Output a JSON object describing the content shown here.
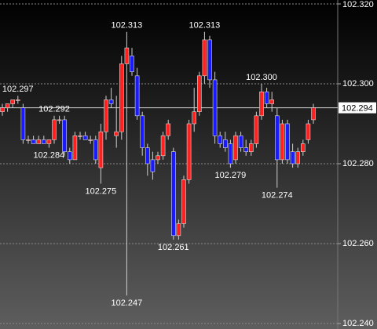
{
  "chart_data": {
    "type": "candlestick",
    "series": [
      {
        "up_color": "#ff2020",
        "down_color": "#1a1aff",
        "open": [
          102.293,
          102.294,
          102.295,
          102.296,
          102.294,
          102.286,
          102.286,
          102.285,
          102.286,
          102.285,
          102.286,
          102.291,
          102.291,
          102.283,
          102.281,
          102.287,
          102.287,
          102.286,
          102.286,
          102.279,
          102.288,
          102.296,
          102.287,
          102.288,
          102.305,
          102.307,
          102.302,
          102.292,
          102.284,
          102.281,
          102.281,
          102.282,
          102.287,
          102.283,
          102.262,
          102.265,
          102.276,
          102.29,
          102.293,
          102.302,
          102.311,
          102.301,
          102.287,
          102.286,
          102.285,
          102.281,
          102.287,
          102.284,
          102.283,
          102.285,
          102.292,
          102.298,
          102.295,
          102.292,
          102.281,
          102.29,
          102.283,
          102.28,
          102.283,
          102.286,
          102.291
        ],
        "high": [
          102.295,
          102.295,
          102.296,
          102.297,
          102.295,
          102.287,
          102.287,
          102.287,
          102.287,
          102.286,
          102.292,
          102.292,
          102.292,
          102.284,
          102.288,
          102.288,
          102.288,
          102.287,
          102.287,
          102.29,
          102.297,
          102.299,
          102.297,
          102.307,
          102.313,
          102.309,
          102.304,
          102.293,
          102.285,
          102.283,
          102.283,
          102.288,
          102.291,
          102.284,
          102.266,
          102.277,
          102.291,
          102.299,
          102.303,
          102.313,
          102.312,
          102.303,
          102.288,
          102.288,
          102.286,
          102.288,
          102.288,
          102.286,
          102.286,
          102.293,
          102.3,
          102.299,
          102.298,
          102.294,
          102.291,
          102.291,
          102.285,
          102.284,
          102.286,
          102.291,
          102.295
        ],
        "low": [
          102.292,
          102.293,
          102.294,
          102.295,
          102.285,
          102.285,
          102.285,
          102.285,
          102.285,
          102.284,
          102.285,
          102.29,
          102.282,
          102.28,
          102.281,
          102.286,
          102.286,
          102.285,
          102.28,
          102.275,
          102.286,
          102.294,
          102.284,
          102.286,
          102.247,
          102.302,
          102.291,
          102.282,
          102.277,
          102.276,
          102.28,
          102.281,
          102.286,
          102.261,
          102.261,
          102.264,
          102.275,
          102.288,
          102.292,
          102.3,
          102.299,
          102.285,
          102.284,
          102.283,
          102.279,
          102.28,
          102.283,
          102.282,
          102.282,
          102.284,
          102.291,
          102.294,
          102.293,
          102.274,
          102.28,
          102.28,
          102.279,
          102.279,
          102.282,
          102.285,
          102.29
        ],
        "close": [
          102.294,
          102.295,
          102.296,
          102.296,
          102.286,
          102.286,
          102.285,
          102.286,
          102.285,
          102.286,
          102.291,
          102.291,
          102.283,
          102.281,
          102.287,
          102.287,
          102.286,
          102.286,
          102.281,
          102.288,
          102.296,
          102.295,
          102.288,
          102.305,
          102.309,
          102.303,
          102.292,
          102.284,
          102.28,
          102.278,
          102.282,
          102.287,
          102.29,
          102.262,
          102.265,
          102.276,
          102.29,
          102.293,
          102.302,
          102.311,
          102.301,
          102.287,
          102.285,
          102.284,
          102.28,
          102.287,
          102.284,
          102.283,
          102.285,
          102.292,
          102.298,
          102.295,
          102.296,
          102.281,
          102.29,
          102.281,
          102.28,
          102.283,
          102.285,
          102.29,
          102.294
        ]
      }
    ],
    "annotations": [
      {
        "value": 102.297,
        "label": "102.297",
        "kind": "high"
      },
      {
        "value": 102.284,
        "label": "102.284",
        "kind": "low"
      },
      {
        "value": 102.292,
        "label": "102.292",
        "kind": "high"
      },
      {
        "value": 102.275,
        "label": "102.275",
        "kind": "low"
      },
      {
        "value": 102.313,
        "label": "102.313",
        "kind": "high"
      },
      {
        "value": 102.247,
        "label": "102.247",
        "kind": "low"
      },
      {
        "value": 102.261,
        "label": "102.261",
        "kind": "low"
      },
      {
        "value": 102.313,
        "label": "102.313",
        "kind": "high"
      },
      {
        "value": 102.279,
        "label": "102.279",
        "kind": "low"
      },
      {
        "value": 102.3,
        "label": "102.300",
        "kind": "high"
      },
      {
        "value": 102.274,
        "label": "102.274",
        "kind": "low"
      }
    ],
    "last_price": {
      "value": 102.294,
      "label": "102.294"
    },
    "ylim": [
      102.24,
      102.32
    ],
    "yticks": [
      {
        "value": 102.24,
        "label": "102.240"
      },
      {
        "value": 102.26,
        "label": "102.260"
      },
      {
        "value": 102.28,
        "label": "102.280"
      },
      {
        "value": 102.3,
        "label": "102.300"
      },
      {
        "value": 102.32,
        "label": "102.320"
      }
    ],
    "grid": true
  }
}
